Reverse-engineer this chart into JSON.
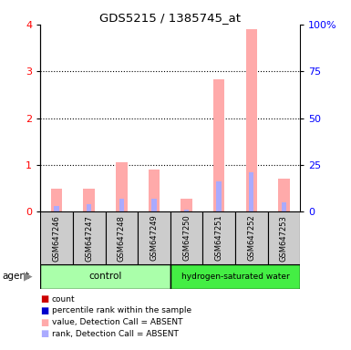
{
  "title": "GDS5215 / 1385745_at",
  "samples": [
    "GSM647246",
    "GSM647247",
    "GSM647248",
    "GSM647249",
    "GSM647250",
    "GSM647251",
    "GSM647252",
    "GSM647253"
  ],
  "value_absent": [
    0.5,
    0.5,
    1.05,
    0.9,
    0.27,
    2.82,
    3.9,
    0.7
  ],
  "rank_absent": [
    0.12,
    0.17,
    0.28,
    0.28,
    0.05,
    0.65,
    0.85,
    0.2
  ],
  "ylim": [
    0,
    4
  ],
  "yticks": [
    0,
    1,
    2,
    3,
    4
  ],
  "y2ticks": [
    0,
    25,
    50,
    75,
    100
  ],
  "y2labels": [
    "0",
    "25",
    "50",
    "75",
    "100%"
  ],
  "bar_width": 0.35,
  "rank_bar_width": 0.15,
  "color_value_absent": "#ffaaaa",
  "color_rank_absent": "#aaaaff",
  "color_count": "#cc0000",
  "color_rank": "#0000cc",
  "ctrl_color": "#aaffaa",
  "hyd_color": "#44ee44",
  "sample_box_color": "#cccccc",
  "legend_items": [
    {
      "label": "count",
      "color": "#cc0000"
    },
    {
      "label": "percentile rank within the sample",
      "color": "#0000cc"
    },
    {
      "label": "value, Detection Call = ABSENT",
      "color": "#ffaaaa"
    },
    {
      "label": "rank, Detection Call = ABSENT",
      "color": "#aaaaff"
    }
  ]
}
